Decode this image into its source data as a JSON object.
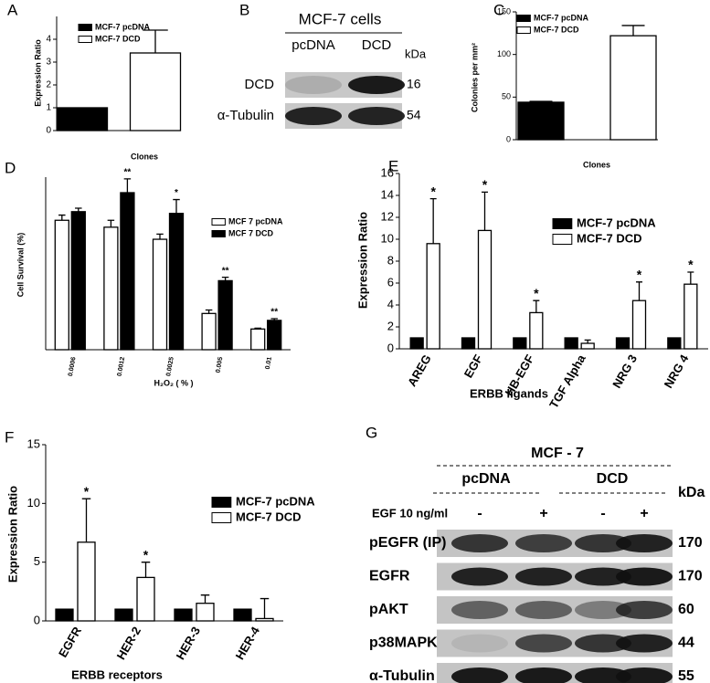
{
  "chart_data": [
    {
      "type": "bar",
      "label": "A",
      "ylabel": "Expression Ratio",
      "xlabel": "Clones",
      "categories": [
        null
      ],
      "ylim": [
        0,
        5
      ],
      "yticks": [
        0,
        1,
        2,
        3,
        4
      ],
      "series": [
        {
          "name": "MCF-7 pcDNA",
          "color": "#000000",
          "values": [
            1
          ],
          "errors": [
            0
          ]
        },
        {
          "name": "MCF-7 DCD",
          "color": "#ffffff",
          "values": [
            3.4
          ],
          "errors": [
            1.0
          ]
        }
      ]
    },
    {
      "type": "bar",
      "label": "C",
      "ylabel": "Colonies per mm²",
      "xlabel": "Clones",
      "categories": [
        null
      ],
      "ylim": [
        0,
        150
      ],
      "yticks": [
        0,
        50,
        100,
        150
      ],
      "series": [
        {
          "name": "MCF-7 pcDNA",
          "color": "#000000",
          "values": [
            44
          ],
          "errors": [
            1
          ]
        },
        {
          "name": "MCF-7 DCD",
          "color": "#ffffff",
          "values": [
            122
          ],
          "errors": [
            12
          ]
        }
      ]
    },
    {
      "type": "bar",
      "label": "D",
      "ylabel": "Cell Survival (%)",
      "xlabel": "H₂O₂ ( % )",
      "categories": [
        "0.0006",
        "0.0012",
        "0.0025",
        "0.005",
        "0.01"
      ],
      "ylim": [
        0,
        100
      ],
      "yticks": [],
      "series": [
        {
          "name": "MCF 7 pcDNA",
          "color": "#ffffff",
          "values": [
            75,
            71,
            64,
            21,
            12
          ],
          "errors": [
            3,
            4,
            3,
            2,
            0.5
          ],
          "annotations": [
            null,
            null,
            null,
            null,
            null
          ]
        },
        {
          "name": "MCF 7 DCD",
          "color": "#000000",
          "values": [
            80,
            91,
            79,
            40,
            17
          ],
          "errors": [
            2,
            8,
            8,
            2,
            1
          ],
          "annotations": [
            null,
            "**",
            "*",
            "**",
            "**"
          ]
        }
      ]
    },
    {
      "type": "bar",
      "label": "E",
      "ylabel": "Expression Ratio",
      "xlabel": "ERBB ligands",
      "categories": [
        "AREG",
        "EGF",
        "HB-EGF",
        "TGF Alpha",
        "NRG 3",
        "NRG 4"
      ],
      "ylim": [
        0,
        16
      ],
      "yticks": [
        0,
        2,
        4,
        6,
        8,
        10,
        12,
        14,
        16
      ],
      "series": [
        {
          "name": "MCF-7 pcDNA",
          "color": "#000000",
          "values": [
            1,
            1,
            1,
            1,
            1,
            1
          ],
          "errors": [
            0,
            0,
            0,
            0,
            0,
            0
          ]
        },
        {
          "name": "MCF-7 DCD",
          "color": "#ffffff",
          "values": [
            9.6,
            10.8,
            3.3,
            0.5,
            4.4,
            5.9
          ],
          "errors": [
            4.1,
            3.5,
            1.1,
            0.3,
            1.7,
            1.1
          ],
          "annotations": [
            "*",
            "*",
            "*",
            null,
            "*",
            "*"
          ]
        }
      ]
    },
    {
      "type": "bar",
      "label": "F",
      "ylabel": "Expression Ratio",
      "xlabel": "ERBB receptors",
      "categories": [
        "EGFR",
        "HER-2",
        "HER-3",
        "HER-4"
      ],
      "ylim": [
        0,
        15
      ],
      "yticks": [
        0,
        5,
        10,
        15
      ],
      "series": [
        {
          "name": "MCF-7 pcDNA",
          "color": "#000000",
          "values": [
            1,
            1,
            1,
            1
          ],
          "errors": [
            0,
            0,
            0,
            0
          ]
        },
        {
          "name": "MCF-7 DCD",
          "color": "#ffffff",
          "values": [
            6.7,
            3.7,
            1.5,
            0.2
          ],
          "errors": [
            3.7,
            1.3,
            0.7,
            1.7
          ],
          "annotations": [
            "*",
            "*",
            null,
            null
          ]
        }
      ]
    }
  ],
  "blots": [
    {
      "label": "B",
      "title": "MCF-7 cells",
      "columns": [
        "pcDNA",
        "DCD"
      ],
      "unit": "kDa",
      "rows": [
        {
          "name": "DCD",
          "kda": 16
        },
        {
          "name": "α-Tubulin",
          "kda": 54
        }
      ]
    },
    {
      "label": "G",
      "title": "MCF - 7",
      "groups": [
        "pcDNA",
        "DCD"
      ],
      "unit": "kDa",
      "treatment": "EGF 10 ng/ml",
      "treatment_levels": [
        "-",
        "+",
        "-",
        "+"
      ],
      "rows": [
        {
          "name": "pEGFR (IP)",
          "kda": 170
        },
        {
          "name": "EGFR",
          "kda": 170
        },
        {
          "name": "pAKT",
          "kda": 60
        },
        {
          "name": "p38MAPK",
          "kda": 44
        },
        {
          "name": "α-Tubulin",
          "kda": 55
        }
      ]
    }
  ]
}
